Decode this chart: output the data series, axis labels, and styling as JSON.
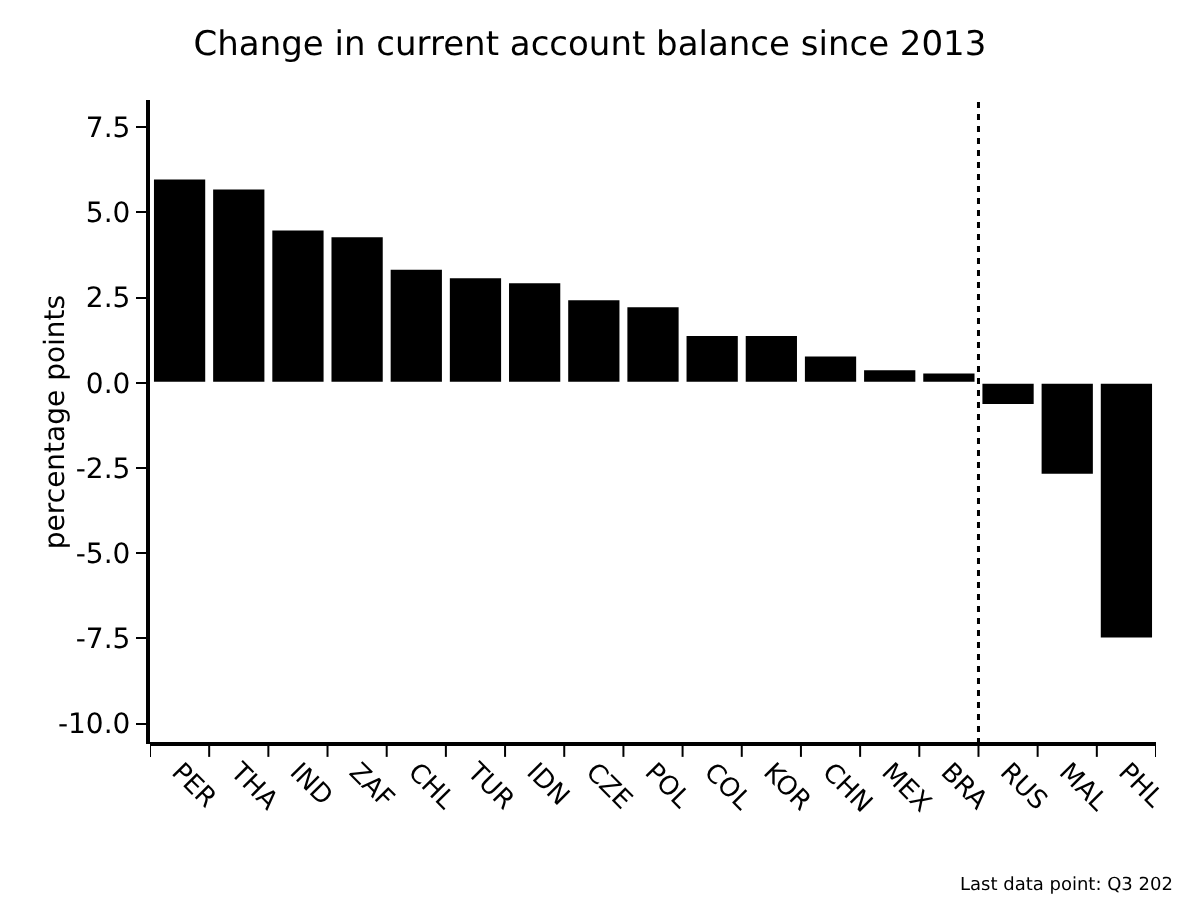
{
  "chart_data": {
    "type": "bar",
    "title": "Change in current account balance since 2013",
    "ylabel": "percentage points",
    "categories": [
      "PER",
      "THA",
      "IND",
      "ZAF",
      "CHL",
      "TUR",
      "IDN",
      "CZE",
      "POL",
      "COL",
      "KOR",
      "CHN",
      "MEX",
      "BRA",
      "RUS",
      "MAL",
      "PHL"
    ],
    "values": [
      6.0,
      5.7,
      4.5,
      4.3,
      3.35,
      3.1,
      2.95,
      2.45,
      2.25,
      1.4,
      1.4,
      0.8,
      0.4,
      0.3,
      -0.65,
      -2.7,
      -7.5
    ],
    "color": "#000000",
    "ylim": [
      -10.6,
      8.3
    ],
    "yticks": [
      {
        "value": -10,
        "label": "-10.0"
      },
      {
        "value": -7.5,
        "label": "-7.5"
      },
      {
        "value": -5,
        "label": "-5.0"
      },
      {
        "value": -2.5,
        "label": "-2.5"
      },
      {
        "value": 0,
        "label": "0.0"
      },
      {
        "value": 2.5,
        "label": "2.5"
      },
      {
        "value": 5,
        "label": "5.0"
      },
      {
        "value": 7.5,
        "label": "7.5"
      }
    ],
    "grid": false,
    "legend": false,
    "annotations": [
      "Last data point: Q3 202"
    ]
  }
}
